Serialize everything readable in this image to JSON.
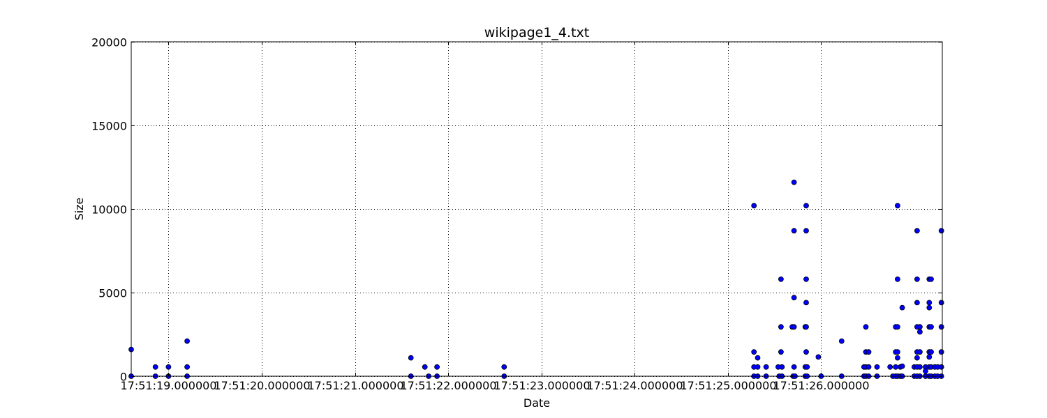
{
  "chart_data": {
    "type": "scatter",
    "title": "wikipage1_4.txt",
    "xlabel": "Date",
    "ylabel": "Size",
    "x_unit": "seconds within minute 17:51",
    "xlim": [
      18.0,
      26.7
    ],
    "ylim": [
      0,
      20000
    ],
    "grid": true,
    "marker_color": "#0000ff",
    "marker_edge_color": "#000000",
    "x_ticks": [
      18.4,
      19.4,
      20.4,
      21.4,
      22.4,
      23.4,
      24.4,
      25.4
    ],
    "x_tick_labels": [
      "17:51:19.000000",
      "17:51:20.000000",
      "17:51:21.000000",
      "17:51:22.000000",
      "17:51:23.000000",
      "17:51:24.000000",
      "17:51:25.000000",
      "17:51:26.000000"
    ],
    "y_ticks": [
      0,
      5000,
      10000,
      15000,
      20000
    ],
    "y_tick_labels": [
      "0",
      "5000",
      "10000",
      "15000",
      "20000"
    ],
    "series": [
      {
        "points": [
          [
            18.0,
            1600
          ],
          [
            18.0,
            0
          ],
          [
            18.26,
            550
          ],
          [
            18.26,
            0
          ],
          [
            18.4,
            550
          ],
          [
            18.4,
            0
          ],
          [
            18.6,
            2100
          ],
          [
            18.6,
            550
          ],
          [
            18.6,
            0
          ],
          [
            21.0,
            1100
          ],
          [
            21.0,
            0
          ],
          [
            21.15,
            550
          ],
          [
            21.19,
            0
          ],
          [
            21.28,
            550
          ],
          [
            21.28,
            0
          ],
          [
            22.0,
            550
          ],
          [
            22.0,
            0
          ],
          [
            24.68,
            10200
          ],
          [
            24.68,
            1450
          ],
          [
            24.68,
            550
          ],
          [
            24.68,
            0
          ],
          [
            24.72,
            1100
          ],
          [
            24.72,
            550
          ],
          [
            24.72,
            0
          ],
          [
            24.81,
            550
          ],
          [
            24.81,
            0
          ],
          [
            24.94,
            550
          ],
          [
            24.95,
            0
          ],
          [
            24.97,
            5800
          ],
          [
            24.97,
            2950
          ],
          [
            24.97,
            1450
          ],
          [
            24.98,
            550
          ],
          [
            24.98,
            0
          ],
          [
            25.09,
            2950
          ],
          [
            25.1,
            0
          ],
          [
            25.11,
            11600
          ],
          [
            25.11,
            8700
          ],
          [
            25.11,
            4700
          ],
          [
            25.11,
            2950
          ],
          [
            25.11,
            550
          ],
          [
            25.12,
            0
          ],
          [
            25.23,
            2950
          ],
          [
            25.23,
            550
          ],
          [
            25.23,
            0
          ],
          [
            25.24,
            10200
          ],
          [
            25.24,
            8700
          ],
          [
            25.24,
            5800
          ],
          [
            25.24,
            4400
          ],
          [
            25.24,
            2950
          ],
          [
            25.24,
            1450
          ],
          [
            25.25,
            550
          ],
          [
            25.25,
            0
          ],
          [
            25.37,
            1150
          ],
          [
            25.4,
            0
          ],
          [
            25.62,
            2100
          ],
          [
            25.62,
            0
          ],
          [
            25.86,
            550
          ],
          [
            25.86,
            0
          ],
          [
            25.88,
            2950
          ],
          [
            25.88,
            1450
          ],
          [
            25.88,
            550
          ],
          [
            25.88,
            0
          ],
          [
            25.91,
            1450
          ],
          [
            25.91,
            550
          ],
          [
            25.91,
            0
          ],
          [
            26.0,
            550
          ],
          [
            26.0,
            0
          ],
          [
            26.14,
            550
          ],
          [
            26.17,
            0
          ],
          [
            26.2,
            2950
          ],
          [
            26.2,
            1450
          ],
          [
            26.2,
            550
          ],
          [
            26.2,
            0
          ],
          [
            26.22,
            10200
          ],
          [
            26.22,
            5800
          ],
          [
            26.22,
            2950
          ],
          [
            26.22,
            1450
          ],
          [
            26.22,
            1100
          ],
          [
            26.22,
            0
          ],
          [
            26.25,
            550
          ],
          [
            26.25,
            0
          ],
          [
            26.27,
            4100
          ],
          [
            26.27,
            600
          ],
          [
            26.27,
            0
          ],
          [
            26.4,
            550
          ],
          [
            26.4,
            0
          ],
          [
            26.43,
            8700
          ],
          [
            26.43,
            5800
          ],
          [
            26.43,
            4400
          ],
          [
            26.43,
            2950
          ],
          [
            26.43,
            1450
          ],
          [
            26.43,
            1100
          ],
          [
            26.43,
            550
          ],
          [
            26.43,
            0
          ],
          [
            26.46,
            2950
          ],
          [
            26.46,
            2650
          ],
          [
            26.46,
            1450
          ],
          [
            26.46,
            550
          ],
          [
            26.46,
            0
          ],
          [
            26.52,
            550
          ],
          [
            26.52,
            300
          ],
          [
            26.52,
            0
          ],
          [
            26.56,
            5800
          ],
          [
            26.56,
            4400
          ],
          [
            26.56,
            4100
          ],
          [
            26.56,
            2950
          ],
          [
            26.56,
            1450
          ],
          [
            26.56,
            1150
          ],
          [
            26.56,
            550
          ],
          [
            26.56,
            0
          ],
          [
            26.58,
            5800
          ],
          [
            26.58,
            2950
          ],
          [
            26.58,
            1450
          ],
          [
            26.58,
            550
          ],
          [
            26.58,
            0
          ],
          [
            26.62,
            550
          ],
          [
            26.62,
            0
          ],
          [
            26.65,
            550
          ],
          [
            26.65,
            0
          ],
          [
            26.69,
            8700
          ],
          [
            26.69,
            4400
          ],
          [
            26.69,
            2950
          ],
          [
            26.69,
            1450
          ],
          [
            26.69,
            550
          ],
          [
            26.69,
            0
          ]
        ]
      }
    ]
  }
}
